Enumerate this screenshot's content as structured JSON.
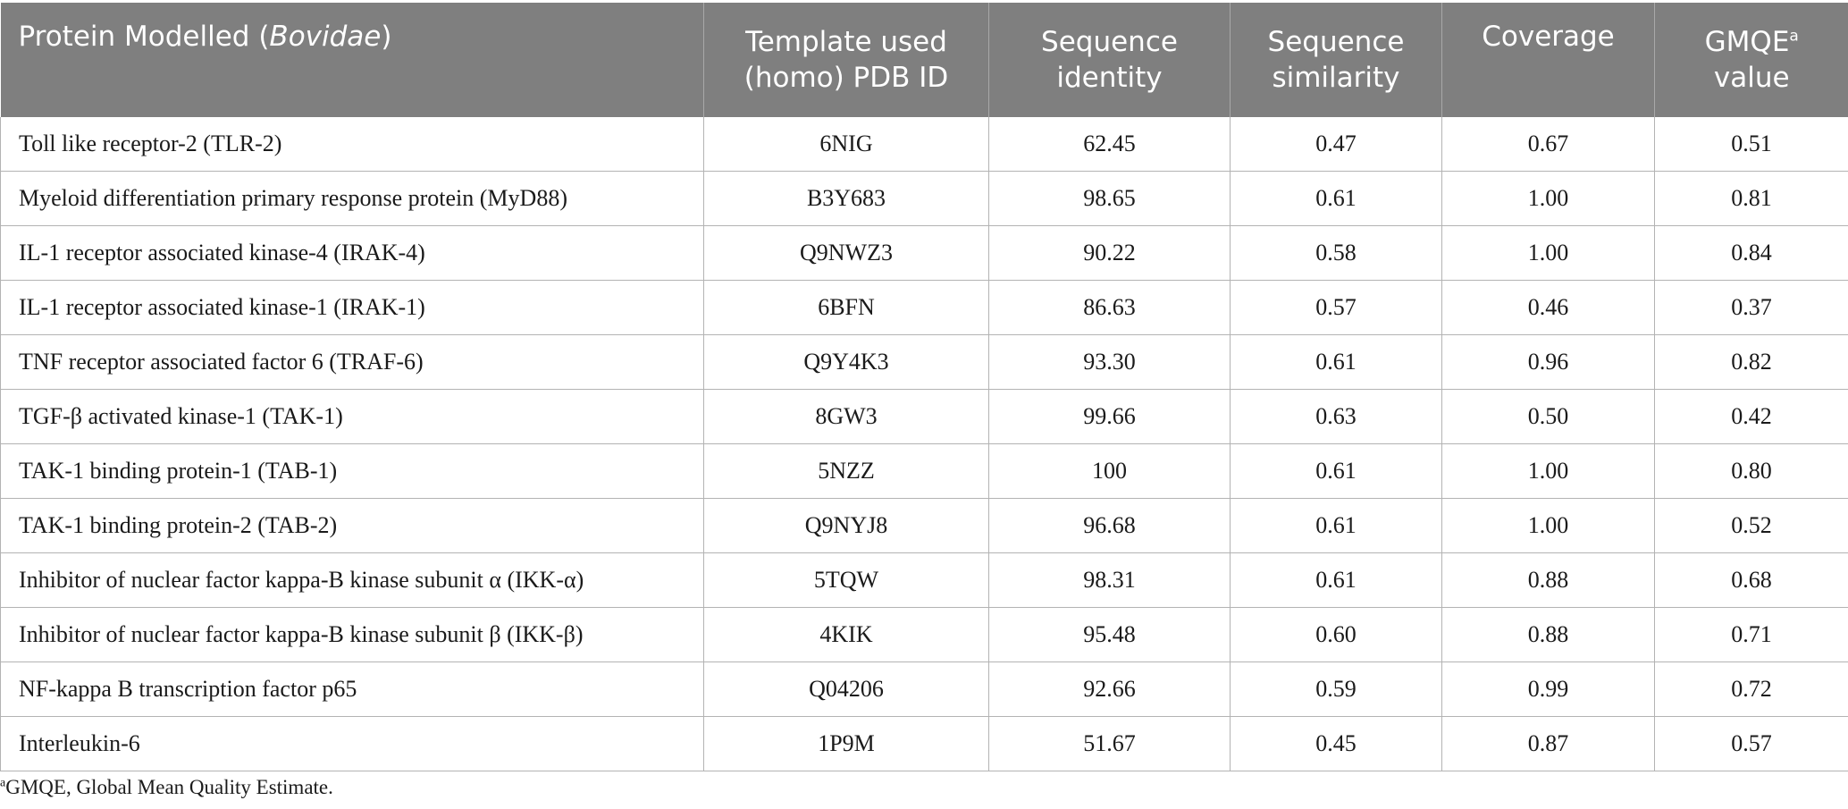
{
  "header": {
    "protein": "Protein Modelled (",
    "protein_italic": "Bovidae",
    "protein_close": ")",
    "template_line1": "Template used",
    "template_line2": "(homo) PDB ID",
    "identity_line1": "Sequence",
    "identity_line2": "identity",
    "similarity_line1": "Sequence",
    "similarity_line2": "similarity",
    "coverage": "Coverage",
    "gmqe_line1": "GMQE",
    "gmqe_sup": "a",
    "gmqe_line2": "value"
  },
  "rows": [
    {
      "protein": "Toll like receptor-2 (TLR-2)",
      "template": "6NIG",
      "identity": "62.45",
      "similarity": "0.47",
      "coverage": "0.67",
      "gmqe": "0.51"
    },
    {
      "protein": "Myeloid differentiation primary response protein (MyD88)",
      "template": "B3Y683",
      "identity": "98.65",
      "similarity": "0.61",
      "coverage": "1.00",
      "gmqe": "0.81"
    },
    {
      "protein": "IL-1 receptor associated kinase-4 (IRAK-4)",
      "template": "Q9NWZ3",
      "identity": "90.22",
      "similarity": "0.58",
      "coverage": "1.00",
      "gmqe": "0.84"
    },
    {
      "protein": "IL-1 receptor associated kinase-1 (IRAK-1)",
      "template": "6BFN",
      "identity": "86.63",
      "similarity": "0.57",
      "coverage": "0.46",
      "gmqe": "0.37"
    },
    {
      "protein": "TNF receptor associated factor 6 (TRAF-6)",
      "template": "Q9Y4K3",
      "identity": "93.30",
      "similarity": "0.61",
      "coverage": "0.96",
      "gmqe": "0.82"
    },
    {
      "protein": "TGF-β activated kinase-1 (TAK-1)",
      "template": "8GW3",
      "identity": "99.66",
      "similarity": "0.63",
      "coverage": "0.50",
      "gmqe": "0.42"
    },
    {
      "protein": "TAK-1 binding protein-1 (TAB-1)",
      "template": "5NZZ",
      "identity": "100",
      "similarity": "0.61",
      "coverage": "1.00",
      "gmqe": "0.80"
    },
    {
      "protein": "TAK-1 binding protein-2 (TAB-2)",
      "template": "Q9NYJ8",
      "identity": "96.68",
      "similarity": "0.61",
      "coverage": "1.00",
      "gmqe": "0.52"
    },
    {
      "protein": "Inhibitor of nuclear factor kappa-B kinase subunit α (IKK-α)",
      "template": "5TQW",
      "identity": "98.31",
      "similarity": "0.61",
      "coverage": "0.88",
      "gmqe": "0.68"
    },
    {
      "protein": "Inhibitor of nuclear factor kappa-B kinase subunit β (IKK-β)",
      "template": "4KIK",
      "identity": "95.48",
      "similarity": "0.60",
      "coverage": "0.88",
      "gmqe": "0.71"
    },
    {
      "protein": "NF-kappa B transcription factor p65",
      "template": "Q04206",
      "identity": "92.66",
      "similarity": "0.59",
      "coverage": "0.99",
      "gmqe": "0.72"
    },
    {
      "protein": "Interleukin-6",
      "template": "1P9M",
      "identity": "51.67",
      "similarity": "0.45",
      "coverage": "0.87",
      "gmqe": "0.57"
    }
  ],
  "footnote": {
    "sup": "a",
    "text": "GMQE, Global Mean Quality Estimate."
  },
  "colors": {
    "header_bg": "#7f7f7f",
    "header_text": "#ffffff",
    "grid": "#b3b3b3"
  }
}
